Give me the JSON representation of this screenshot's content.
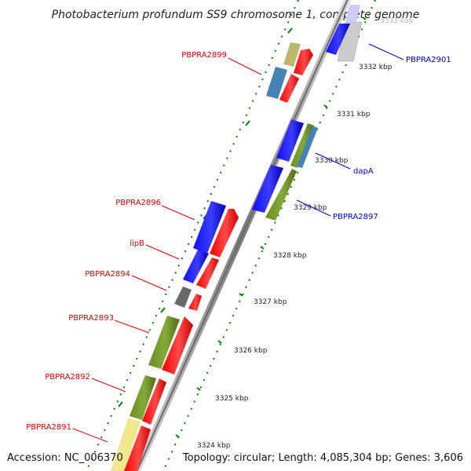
{
  "title": "Photobacterium profundum SS9 chromosome 1, complete genome",
  "footer": {
    "accession": "Accession: NC_006370",
    "info": "Topology: circular; Length: 4,085,304 bp; Genes: 3,606"
  },
  "ticks": [
    {
      "label": "3324 kbp"
    },
    {
      "label": "3325 kbp"
    },
    {
      "label": "3326 kbp"
    },
    {
      "label": "3327 kbp"
    },
    {
      "label": "3328 kbp"
    },
    {
      "label": "3329 kbp"
    },
    {
      "label": "3330 kbp"
    },
    {
      "label": "3331 kbp"
    },
    {
      "label": "3332 kbp"
    },
    {
      "label": "3333 kbp"
    }
  ],
  "gene_labels_left": [
    {
      "text": "PBPRA2899"
    },
    {
      "text": "PBPRA2896"
    },
    {
      "text": "lipB"
    },
    {
      "text": "PBPRA2894"
    },
    {
      "text": "PBPRA2893"
    },
    {
      "text": "PBPRA2892"
    },
    {
      "text": "PBPRA2891"
    }
  ],
  "gene_labels_right": [
    {
      "text": "PBPRA2901"
    },
    {
      "text": "dapA"
    },
    {
      "text": "PBPRA2897"
    }
  ],
  "colors": {
    "backbone": "#8c8c8c",
    "forward_cds": "#ff0000",
    "reverse_cds": "#0000ff",
    "olive": "#6b8e23",
    "steel_blue": "#4682b4",
    "khaki": "#bdb76b",
    "pale_yellow": "#f0e68c",
    "gray_feature": "#696969",
    "light_gray": "#cccccc",
    "tick_green": "#008000",
    "left_label": "#e00000",
    "right_label": "#0000cc"
  }
}
